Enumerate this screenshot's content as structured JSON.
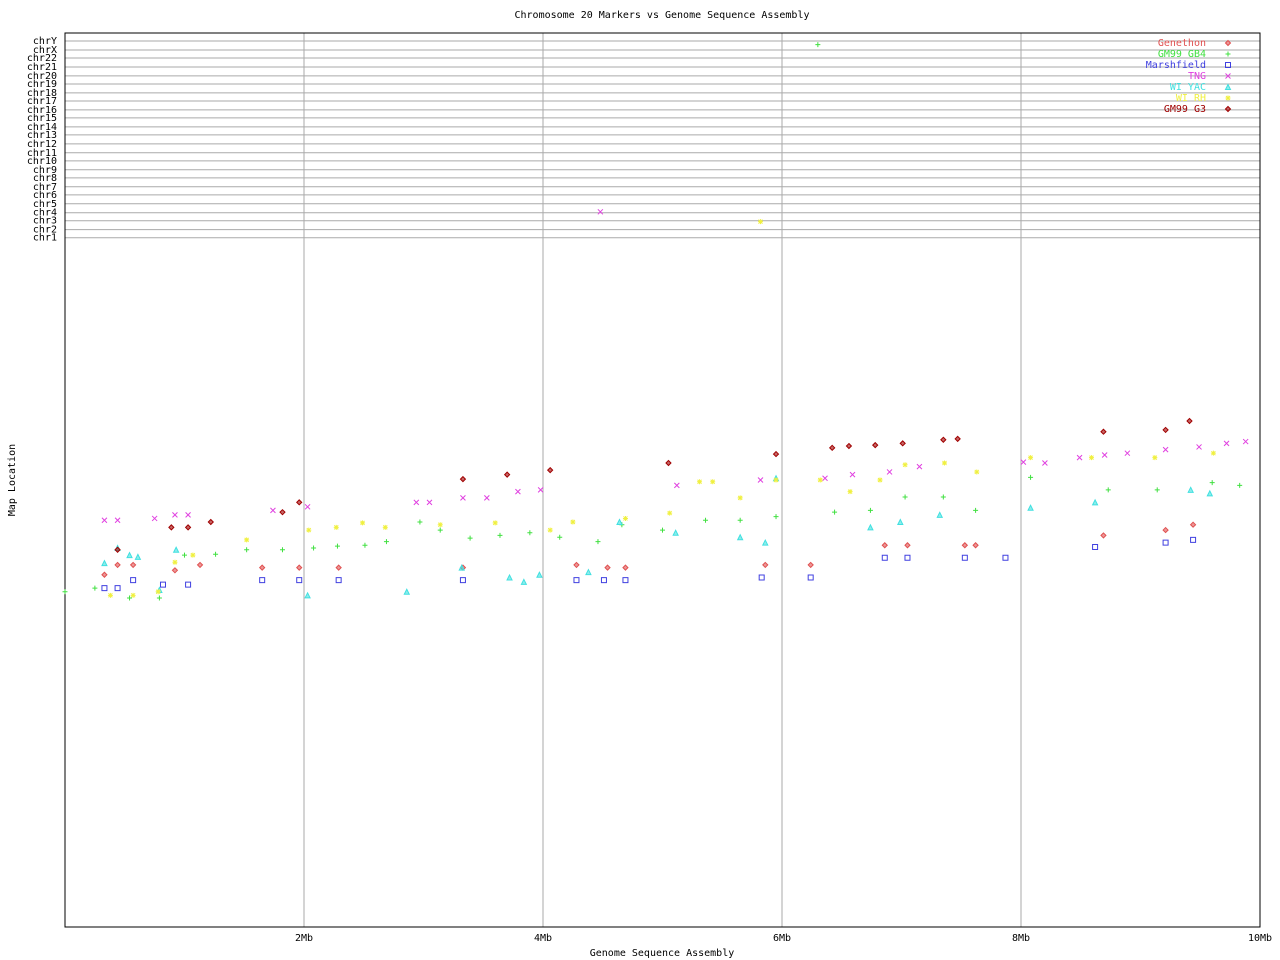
{
  "chart_data": {
    "type": "scatter",
    "title": "Chromosome 20 Markers vs Genome Sequence Assembly",
    "x_label": "Genome Sequence Assembly",
    "y_label": "Map Location",
    "xlim": [
      0,
      10
    ],
    "ylim": [
      0,
      100
    ],
    "xticks": [
      {
        "value": 2,
        "label": "2Mb"
      },
      {
        "value": 4,
        "label": "4Mb"
      },
      {
        "value": 6,
        "label": "6Mb"
      },
      {
        "value": 8,
        "label": "8Mb"
      },
      {
        "value": 10,
        "label": "10Mb"
      }
    ],
    "yticks": [
      {
        "value": 77.1,
        "label": "chr1"
      },
      {
        "value": 78.0,
        "label": "chr2"
      },
      {
        "value": 79.0,
        "label": "chr3"
      },
      {
        "value": 79.9,
        "label": "chr4"
      },
      {
        "value": 80.9,
        "label": "chr5"
      },
      {
        "value": 81.9,
        "label": "chr6"
      },
      {
        "value": 82.8,
        "label": "chr7"
      },
      {
        "value": 83.8,
        "label": "chr8"
      },
      {
        "value": 84.7,
        "label": "chr9"
      },
      {
        "value": 85.7,
        "label": "chr10"
      },
      {
        "value": 86.6,
        "label": "chr11"
      },
      {
        "value": 87.6,
        "label": "chr12"
      },
      {
        "value": 88.6,
        "label": "chr13"
      },
      {
        "value": 89.5,
        "label": "chr14"
      },
      {
        "value": 90.5,
        "label": "chr15"
      },
      {
        "value": 91.4,
        "label": "chr16"
      },
      {
        "value": 92.4,
        "label": "chr17"
      },
      {
        "value": 93.3,
        "label": "chr18"
      },
      {
        "value": 94.3,
        "label": "chr19"
      },
      {
        "value": 95.2,
        "label": "chr20"
      },
      {
        "value": 96.2,
        "label": "chr21"
      },
      {
        "value": 97.2,
        "label": "chr22"
      },
      {
        "value": 98.1,
        "label": "chrX"
      },
      {
        "value": 99.1,
        "label": "chrY"
      }
    ],
    "grid": true,
    "legend": "upper right",
    "series": [
      {
        "name": "Genethon",
        "color": "#e05050",
        "marker": "diamond",
        "x": [
          0.33,
          0.44,
          0.57,
          0.92,
          1.13,
          1.65,
          1.96,
          2.29,
          3.33,
          4.28,
          4.54,
          4.69,
          5.86,
          6.24,
          6.86,
          7.05,
          7.53,
          7.62,
          8.69,
          9.21,
          9.44
        ],
        "values": [
          39.4,
          40.5,
          40.5,
          39.9,
          40.5,
          40.2,
          40.2,
          40.2,
          40.2,
          40.5,
          40.2,
          40.2,
          40.5,
          40.5,
          42.7,
          42.7,
          42.7,
          42.7,
          43.8,
          44.4,
          45.0
        ]
      },
      {
        "name": "GM99 GB4",
        "color": "#40e040",
        "marker": "plus",
        "x": [
          0,
          0.25,
          0.54,
          0.79,
          1.0,
          1.26,
          1.52,
          1.82,
          2.08,
          2.28,
          2.51,
          2.69,
          2.97,
          3.14,
          3.39,
          3.64,
          3.89,
          4.14,
          4.46,
          4.66,
          5.0,
          5.36,
          5.65,
          5.95,
          6.3,
          6.44,
          6.74,
          7.03,
          7.35,
          7.62,
          8.08,
          8.73,
          9.14,
          9.6,
          9.83
        ],
        "values": [
          37.5,
          37.9,
          36.8,
          36.8,
          41.6,
          41.7,
          42.2,
          42.2,
          42.4,
          42.6,
          42.7,
          43.1,
          45.3,
          44.4,
          43.5,
          43.8,
          44.1,
          43.6,
          43.1,
          45.0,
          44.4,
          45.5,
          45.5,
          45.9,
          98.7,
          46.4,
          46.6,
          48.1,
          48.1,
          46.6,
          50.3,
          48.9,
          48.9,
          49.7,
          49.4
        ]
      },
      {
        "name": "Marshfield",
        "color": "#4040e0",
        "marker": "square",
        "x": [
          0.33,
          0.44,
          0.57,
          0.82,
          1.03,
          1.65,
          1.96,
          2.29,
          3.33,
          4.28,
          4.51,
          4.69,
          5.83,
          6.24,
          6.86,
          7.05,
          7.53,
          7.87,
          8.62,
          9.21,
          9.44
        ],
        "values": [
          37.9,
          37.9,
          38.8,
          38.3,
          38.3,
          38.8,
          38.8,
          38.8,
          38.8,
          38.8,
          38.8,
          38.8,
          39.1,
          39.1,
          41.3,
          41.3,
          41.3,
          41.3,
          42.5,
          43.0,
          43.3
        ]
      },
      {
        "name": "TNG",
        "color": "#e040e0",
        "marker": "x",
        "x": [
          0.33,
          0.44,
          0.75,
          0.92,
          1.03,
          1.74,
          2.03,
          2.94,
          3.05,
          3.33,
          3.53,
          3.79,
          3.98,
          4.48,
          5.12,
          5.82,
          6.36,
          6.59,
          6.9,
          7.15,
          8.02,
          8.2,
          8.49,
          8.7,
          8.89,
          9.21,
          9.49,
          9.72,
          9.88
        ],
        "values": [
          45.5,
          45.5,
          45.7,
          46.1,
          46.1,
          46.6,
          47.0,
          47.5,
          47.5,
          48.0,
          48.0,
          48.7,
          48.9,
          80.0,
          49.4,
          50.0,
          50.2,
          50.6,
          50.9,
          51.5,
          52.0,
          51.9,
          52.5,
          52.8,
          53.0,
          53.4,
          53.7,
          54.1,
          54.3
        ]
      },
      {
        "name": "WI YAC",
        "color": "#40e0e0",
        "marker": "triangle",
        "x": [
          0.33,
          0.44,
          0.54,
          0.61,
          0.79,
          0.93,
          2.03,
          2.86,
          3.32,
          3.72,
          3.84,
          3.97,
          4.38,
          4.64,
          5.11,
          5.65,
          5.86,
          5.95,
          6.74,
          6.99,
          7.32,
          8.08,
          8.62,
          9.42,
          9.58
        ],
        "values": [
          40.7,
          42.4,
          41.6,
          41.4,
          37.7,
          42.2,
          37.1,
          37.5,
          40.2,
          39.1,
          38.6,
          39.4,
          39.7,
          45.3,
          44.1,
          43.6,
          43.0,
          50.2,
          44.7,
          45.3,
          46.1,
          46.9,
          47.5,
          48.9,
          48.5
        ]
      },
      {
        "name": "WI RH",
        "color": "#f0f040",
        "marker": "star",
        "x": [
          0.38,
          0.57,
          0.78,
          0.92,
          1.07,
          1.52,
          2.04,
          2.27,
          2.49,
          2.68,
          3.14,
          3.6,
          4.06,
          4.25,
          4.69,
          5.06,
          5.31,
          5.42,
          5.65,
          5.82,
          5.95,
          6.32,
          6.57,
          6.82,
          7.03,
          7.36,
          7.63,
          8.08,
          8.59,
          9.12,
          9.61
        ],
        "values": [
          37.1,
          37.1,
          37.5,
          40.8,
          41.6,
          43.3,
          44.4,
          44.7,
          45.2,
          44.7,
          45.0,
          45.2,
          44.4,
          45.3,
          45.7,
          46.3,
          49.8,
          49.8,
          48.0,
          78.9,
          50.0,
          50.0,
          48.7,
          50.0,
          51.7,
          51.9,
          50.9,
          52.5,
          52.5,
          52.5,
          53.0
        ]
      },
      {
        "name": "GM99 G3",
        "color": "#a00000",
        "marker": "diamond",
        "x": [
          0.44,
          0.89,
          1.03,
          1.22,
          1.82,
          1.96,
          3.33,
          3.7,
          4.06,
          5.05,
          5.95,
          6.42,
          6.56,
          6.78,
          7.01,
          7.35,
          7.47,
          8.69,
          9.21,
          9.41
        ],
        "values": [
          42.2,
          44.7,
          44.7,
          45.3,
          46.4,
          47.5,
          50.1,
          50.6,
          51.1,
          51.9,
          52.9,
          53.6,
          53.8,
          53.9,
          54.1,
          54.5,
          54.6,
          55.4,
          55.6,
          56.6
        ]
      }
    ]
  }
}
